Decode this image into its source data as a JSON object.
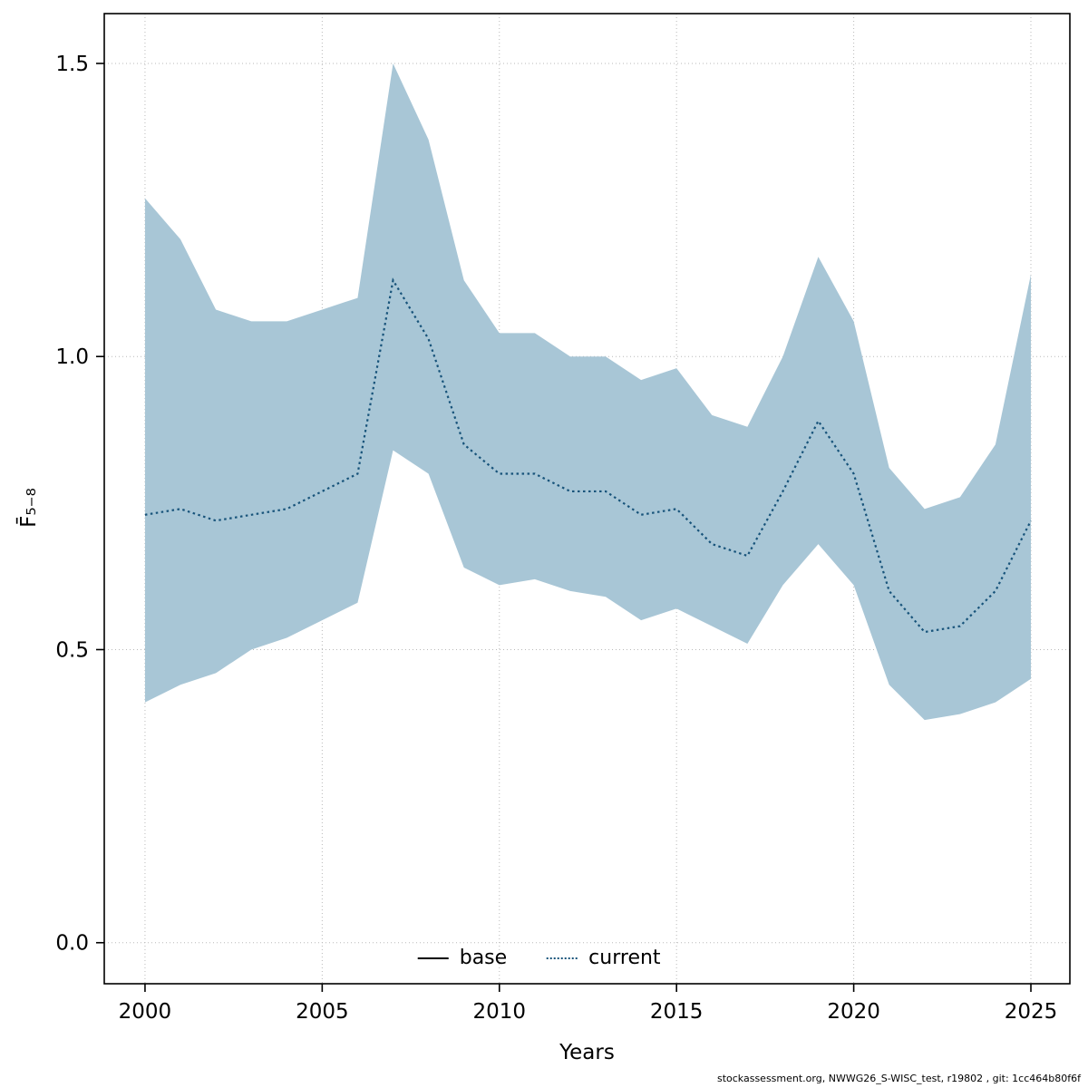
{
  "chart_data": {
    "type": "line",
    "title": "",
    "xlabel": "Years",
    "ylabel": "F̄₅₋₈",
    "grid": true,
    "legend_position": "bottom-center-inside",
    "xlim": [
      1998.85,
      2026.1
    ],
    "ylim": [
      -0.07,
      1.585
    ],
    "x_ticks": [
      2000,
      2005,
      2010,
      2015,
      2020,
      2025
    ],
    "y_ticks": [
      "0.0",
      "0.5",
      "1.0",
      "1.5"
    ],
    "y_tick_values": [
      0,
      0.5,
      1.0,
      1.5
    ],
    "x": [
      2000,
      2001,
      2002,
      2003,
      2004,
      2005,
      2006,
      2007,
      2008,
      2009,
      2010,
      2011,
      2012,
      2013,
      2014,
      2015,
      2016,
      2017,
      2018,
      2019,
      2020,
      2021,
      2022,
      2023,
      2024,
      2025
    ],
    "series": [
      {
        "name": "base",
        "line_style": "solid",
        "color": "#000000",
        "values": []
      },
      {
        "name": "current",
        "line_style": "dotted",
        "color": "#17537a",
        "values": [
          0.73,
          0.74,
          0.72,
          0.73,
          0.74,
          0.77,
          0.8,
          1.13,
          1.03,
          0.85,
          0.8,
          0.8,
          0.77,
          0.77,
          0.73,
          0.74,
          0.68,
          0.66,
          0.77,
          0.89,
          0.8,
          0.6,
          0.53,
          0.54,
          0.6,
          0.72
        ]
      }
    ],
    "band": {
      "name": "current-confidence-band",
      "color": "#a8c6d6",
      "upper": [
        1.27,
        1.2,
        1.08,
        1.06,
        1.06,
        1.08,
        1.1,
        1.5,
        1.37,
        1.13,
        1.04,
        1.04,
        1.0,
        1.0,
        0.96,
        0.98,
        0.9,
        0.88,
        1.0,
        1.17,
        1.06,
        0.81,
        0.74,
        0.76,
        0.85,
        1.14
      ],
      "lower": [
        0.41,
        0.44,
        0.46,
        0.5,
        0.52,
        0.55,
        0.58,
        0.84,
        0.8,
        0.64,
        0.61,
        0.62,
        0.6,
        0.59,
        0.55,
        0.57,
        0.54,
        0.51,
        0.61,
        0.68,
        0.61,
        0.44,
        0.38,
        0.39,
        0.41,
        0.45
      ]
    }
  },
  "caption": "stockassessment.org, NWWG26_S-WISC_test, r19802 , git: 1cc464b80f6f"
}
